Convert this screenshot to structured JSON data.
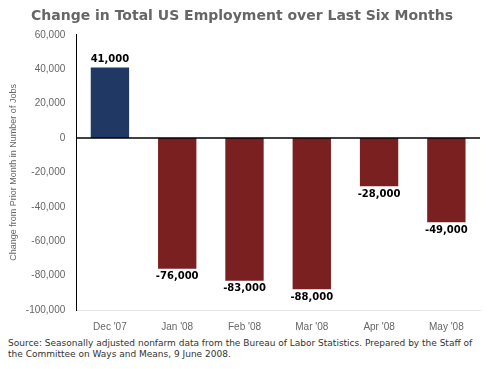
{
  "chart_data": {
    "type": "bar",
    "title": "Change in Total US Employment over Last Six Months",
    "categories": [
      "Dec '07",
      "Jan '08",
      "Feb '08",
      "Mar '08",
      "Apr '08",
      "May '08"
    ],
    "values": [
      41000,
      -76000,
      -83000,
      -88000,
      -28000,
      -49000
    ],
    "value_labels": [
      "41,000",
      "-76,000",
      "-83,000",
      "-88,000",
      "-28,000",
      "-49,000"
    ],
    "data_labels": true,
    "colors": [
      "#1f3864",
      "#7b2020",
      "#7b2020",
      "#7b2020",
      "#7b2020",
      "#7b2020"
    ],
    "ylabel": "Change from Prior Month in Number of Jobs",
    "ylim": [
      -100000,
      60000
    ],
    "yticks": [
      {
        "value": -100000,
        "label": "-100,000"
      },
      {
        "value": -80000,
        "label": "-80,000"
      },
      {
        "value": -60000,
        "label": "-60,000"
      },
      {
        "value": -40000,
        "label": "-40,000"
      },
      {
        "value": -20000,
        "label": "-20,000"
      },
      0,
      {
        "value": 20000,
        "label": "20,000"
      },
      {
        "value": 40000,
        "label": "40,000"
      },
      {
        "value": 60000,
        "label": "60,000"
      }
    ],
    "annotations": [
      "Source: Seasonally adjusted nonfarm data from the Bureau of Labor Statistics. Prepared by the Staff of the Committee on Ways and Means, 9 June 2008."
    ],
    "grid": false
  }
}
